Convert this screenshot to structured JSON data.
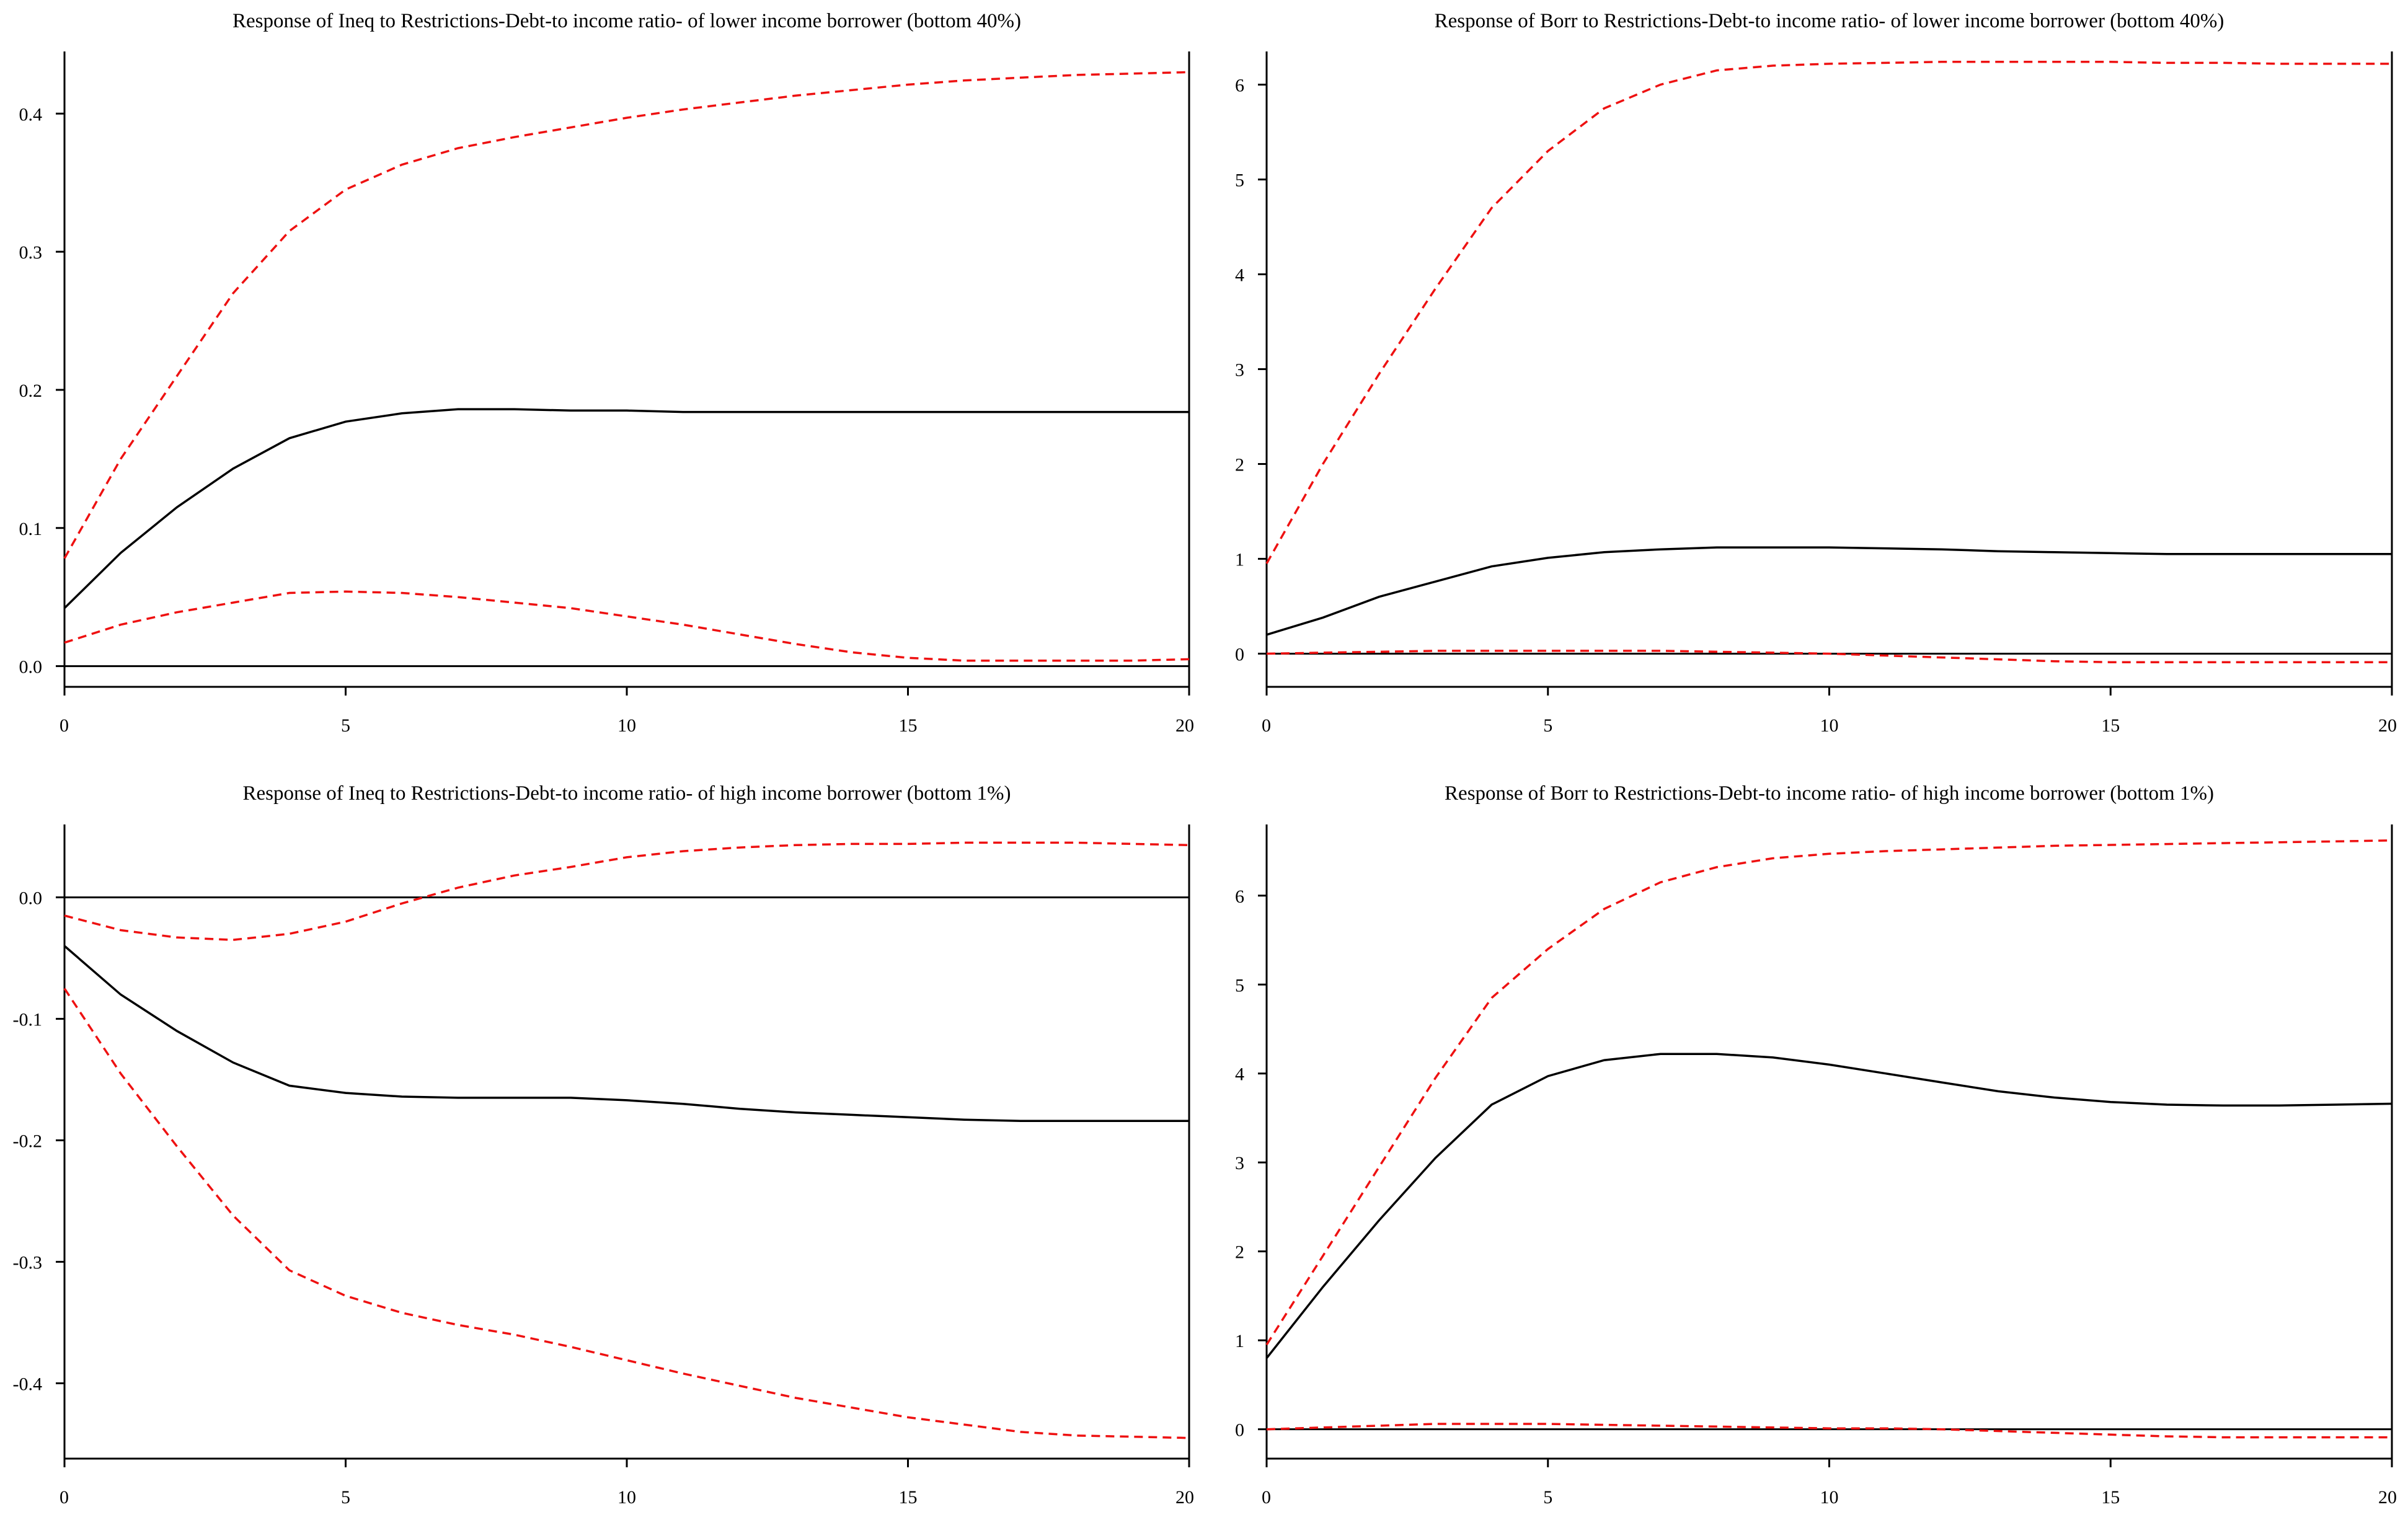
{
  "figure_title": "",
  "chart_data": [
    {
      "type": "line",
      "title": "Response of Ineq to Restrictions-Debt-to income ratio- of lower income borrower (bottom 40%)",
      "xlabel": "",
      "ylabel": "",
      "xlim": [
        0,
        20
      ],
      "ylim": [
        -0.015,
        0.445
      ],
      "xticks": [
        0,
        5,
        10,
        15,
        20
      ],
      "xtick_labels": [
        "0",
        "5",
        "10",
        "15",
        "20"
      ],
      "yticks": [
        0.0,
        0.1,
        0.2,
        0.3,
        0.4
      ],
      "ytick_labels": [
        "0.0",
        "0.1",
        "0.2",
        "0.3",
        "0.4"
      ],
      "zero_line": 0,
      "x": [
        0,
        1,
        2,
        3,
        4,
        5,
        6,
        7,
        8,
        9,
        10,
        11,
        12,
        13,
        14,
        15,
        16,
        17,
        18,
        19,
        20
      ],
      "series": [
        {
          "name": "Response",
          "style": "solid",
          "color": "#000000",
          "values": [
            0.042,
            0.082,
            0.115,
            0.143,
            0.165,
            0.177,
            0.183,
            0.186,
            0.186,
            0.185,
            0.185,
            0.184,
            0.184,
            0.184,
            0.184,
            0.184,
            0.184,
            0.184,
            0.184,
            0.184,
            0.184
          ]
        },
        {
          "name": "Upper band",
          "style": "dashed",
          "color": "#ee1111",
          "values": [
            0.078,
            0.15,
            0.21,
            0.27,
            0.315,
            0.345,
            0.363,
            0.375,
            0.383,
            0.39,
            0.397,
            0.403,
            0.408,
            0.413,
            0.417,
            0.421,
            0.424,
            0.426,
            0.428,
            0.429,
            0.43
          ]
        },
        {
          "name": "Lower band",
          "style": "dashed",
          "color": "#ee1111",
          "values": [
            0.017,
            0.03,
            0.039,
            0.046,
            0.053,
            0.054,
            0.053,
            0.05,
            0.046,
            0.042,
            0.036,
            0.03,
            0.023,
            0.016,
            0.01,
            0.006,
            0.004,
            0.004,
            0.004,
            0.004,
            0.005
          ]
        }
      ]
    },
    {
      "type": "line",
      "title": "Response of Borr to Restrictions-Debt-to income ratio- of lower income borrower (bottom 40%)",
      "xlabel": "",
      "ylabel": "",
      "xlim": [
        0,
        20
      ],
      "ylim": [
        -0.35,
        6.35
      ],
      "xticks": [
        0,
        5,
        10,
        15,
        20
      ],
      "xtick_labels": [
        "0",
        "5",
        "10",
        "15",
        "20"
      ],
      "yticks": [
        0,
        1,
        2,
        3,
        4,
        5,
        6
      ],
      "ytick_labels": [
        "0",
        "1",
        "2",
        "3",
        "4",
        "5",
        "6"
      ],
      "zero_line": 0,
      "x": [
        0,
        1,
        2,
        3,
        4,
        5,
        6,
        7,
        8,
        9,
        10,
        11,
        12,
        13,
        14,
        15,
        16,
        17,
        18,
        19,
        20
      ],
      "series": [
        {
          "name": "Response",
          "style": "solid",
          "color": "#000000",
          "values": [
            0.2,
            0.38,
            0.6,
            0.76,
            0.92,
            1.01,
            1.07,
            1.1,
            1.12,
            1.12,
            1.12,
            1.11,
            1.1,
            1.08,
            1.07,
            1.06,
            1.05,
            1.05,
            1.05,
            1.05,
            1.05
          ]
        },
        {
          "name": "Upper band",
          "style": "dashed",
          "color": "#ee1111",
          "values": [
            0.95,
            2.0,
            2.95,
            3.85,
            4.7,
            5.3,
            5.75,
            6.0,
            6.15,
            6.2,
            6.22,
            6.23,
            6.24,
            6.24,
            6.24,
            6.24,
            6.23,
            6.23,
            6.22,
            6.22,
            6.22
          ]
        },
        {
          "name": "Lower band",
          "style": "dashed",
          "color": "#ee1111",
          "values": [
            0.0,
            0.01,
            0.02,
            0.03,
            0.03,
            0.03,
            0.03,
            0.03,
            0.02,
            0.01,
            0.0,
            -0.02,
            -0.04,
            -0.06,
            -0.08,
            -0.09,
            -0.09,
            -0.09,
            -0.09,
            -0.09,
            -0.09
          ]
        }
      ]
    },
    {
      "type": "line",
      "title": "Response of Ineq to Restrictions-Debt-to income ratio- of high income borrower (bottom 1%)",
      "xlabel": "",
      "ylabel": "",
      "xlim": [
        0,
        20
      ],
      "ylim": [
        -0.462,
        0.06
      ],
      "xticks": [
        0,
        5,
        10,
        15,
        20
      ],
      "xtick_labels": [
        "0",
        "5",
        "10",
        "15",
        "20"
      ],
      "yticks": [
        0.0,
        -0.1,
        -0.2,
        -0.3,
        -0.4
      ],
      "ytick_labels": [
        "0.0",
        "-0.1",
        "-0.2",
        "-0.3",
        "-0.4"
      ],
      "zero_line": 0,
      "x": [
        0,
        1,
        2,
        3,
        4,
        5,
        6,
        7,
        8,
        9,
        10,
        11,
        12,
        13,
        14,
        15,
        16,
        17,
        18,
        19,
        20
      ],
      "series": [
        {
          "name": "Response",
          "style": "solid",
          "color": "#000000",
          "values": [
            -0.04,
            -0.08,
            -0.11,
            -0.136,
            -0.155,
            -0.161,
            -0.164,
            -0.165,
            -0.165,
            -0.165,
            -0.167,
            -0.17,
            -0.174,
            -0.177,
            -0.179,
            -0.181,
            -0.183,
            -0.184,
            -0.184,
            -0.184,
            -0.184
          ]
        },
        {
          "name": "Upper band",
          "style": "dashed",
          "color": "#ee1111",
          "values": [
            -0.015,
            -0.027,
            -0.033,
            -0.035,
            -0.03,
            -0.02,
            -0.005,
            0.008,
            0.018,
            0.025,
            0.033,
            0.038,
            0.041,
            0.043,
            0.044,
            0.044,
            0.045,
            0.045,
            0.045,
            0.044,
            0.043
          ]
        },
        {
          "name": "Lower band",
          "style": "dashed",
          "color": "#ee1111",
          "values": [
            -0.075,
            -0.145,
            -0.205,
            -0.262,
            -0.307,
            -0.328,
            -0.342,
            -0.352,
            -0.36,
            -0.37,
            -0.381,
            -0.392,
            -0.402,
            -0.412,
            -0.42,
            -0.428,
            -0.434,
            -0.44,
            -0.443,
            -0.444,
            -0.445
          ]
        }
      ]
    },
    {
      "type": "line",
      "title": "Response of Borr to Restrictions-Debt-to income ratio- of high income borrower (bottom 1%)",
      "xlabel": "",
      "ylabel": "",
      "xlim": [
        0,
        20
      ],
      "ylim": [
        -0.33,
        6.8
      ],
      "xticks": [
        0,
        5,
        10,
        15,
        20
      ],
      "xtick_labels": [
        "0",
        "5",
        "10",
        "15",
        "20"
      ],
      "yticks": [
        0,
        1,
        2,
        3,
        4,
        5,
        6
      ],
      "ytick_labels": [
        "0",
        "1",
        "2",
        "3",
        "4",
        "5",
        "6"
      ],
      "zero_line": 0,
      "x": [
        0,
        1,
        2,
        3,
        4,
        5,
        6,
        7,
        8,
        9,
        10,
        11,
        12,
        13,
        14,
        15,
        16,
        17,
        18,
        19,
        20
      ],
      "series": [
        {
          "name": "Response",
          "style": "solid",
          "color": "#000000",
          "values": [
            0.8,
            1.6,
            2.35,
            3.05,
            3.65,
            3.97,
            4.15,
            4.22,
            4.22,
            4.18,
            4.1,
            4.0,
            3.9,
            3.8,
            3.73,
            3.68,
            3.65,
            3.64,
            3.64,
            3.65,
            3.66
          ]
        },
        {
          "name": "Upper band",
          "style": "dashed",
          "color": "#ee1111",
          "values": [
            0.95,
            1.95,
            2.95,
            3.95,
            4.85,
            5.4,
            5.85,
            6.15,
            6.32,
            6.42,
            6.47,
            6.5,
            6.52,
            6.54,
            6.56,
            6.57,
            6.58,
            6.59,
            6.6,
            6.61,
            6.62
          ]
        },
        {
          "name": "Lower band",
          "style": "dashed",
          "color": "#ee1111",
          "values": [
            0.0,
            0.02,
            0.04,
            0.06,
            0.06,
            0.06,
            0.05,
            0.04,
            0.03,
            0.02,
            0.01,
            0.01,
            0.0,
            -0.02,
            -0.04,
            -0.06,
            -0.08,
            -0.09,
            -0.09,
            -0.09,
            -0.09
          ]
        }
      ]
    }
  ]
}
